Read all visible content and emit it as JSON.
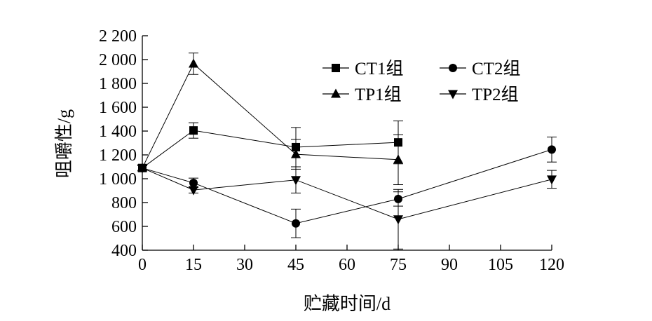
{
  "chart_data": {
    "type": "line",
    "xlabel": "贮藏时间/d",
    "ylabel": "咀嚼性/g",
    "xlim": [
      0,
      120
    ],
    "ylim": [
      400,
      2200
    ],
    "x_ticks": [
      0,
      15,
      30,
      45,
      60,
      75,
      90,
      105,
      120
    ],
    "y_ticks": [
      400,
      600,
      800,
      1000,
      1200,
      1400,
      1600,
      1800,
      2000,
      2200
    ],
    "x_tick_labels": [
      "0",
      "15",
      "30",
      "45",
      "60",
      "75",
      "90",
      "105",
      "120"
    ],
    "y_tick_labels": [
      "400",
      "600",
      "800",
      "1 000",
      "1 200",
      "1 400",
      "1 600",
      "1 800",
      "2 000",
      "2 200"
    ],
    "grid": false,
    "legend_position": "top-right",
    "series": [
      {
        "name": "CT1组",
        "marker": "square",
        "x": [
          0,
          15,
          45,
          75
        ],
        "y": [
          1090,
          1405,
          1265,
          1305
        ],
        "err": [
          20,
          65,
          165,
          180
        ]
      },
      {
        "name": "CT2组",
        "marker": "circle",
        "x": [
          0,
          15,
          45,
          75,
          120
        ],
        "y": [
          1090,
          965,
          625,
          830,
          1245
        ],
        "err": [
          20,
          40,
          120,
          60,
          105
        ]
      },
      {
        "name": "TP1组",
        "marker": "triangle-up",
        "x": [
          0,
          15,
          45,
          75
        ],
        "y": [
          1090,
          1965,
          1205,
          1160
        ],
        "err": [
          20,
          90,
          125,
          210
        ]
      },
      {
        "name": "TP2组",
        "marker": "triangle-down",
        "x": [
          0,
          15,
          45,
          75,
          120
        ],
        "y": [
          1090,
          905,
          990,
          660,
          995
        ],
        "err": [
          20,
          25,
          110,
          250,
          75
        ]
      }
    ]
  }
}
